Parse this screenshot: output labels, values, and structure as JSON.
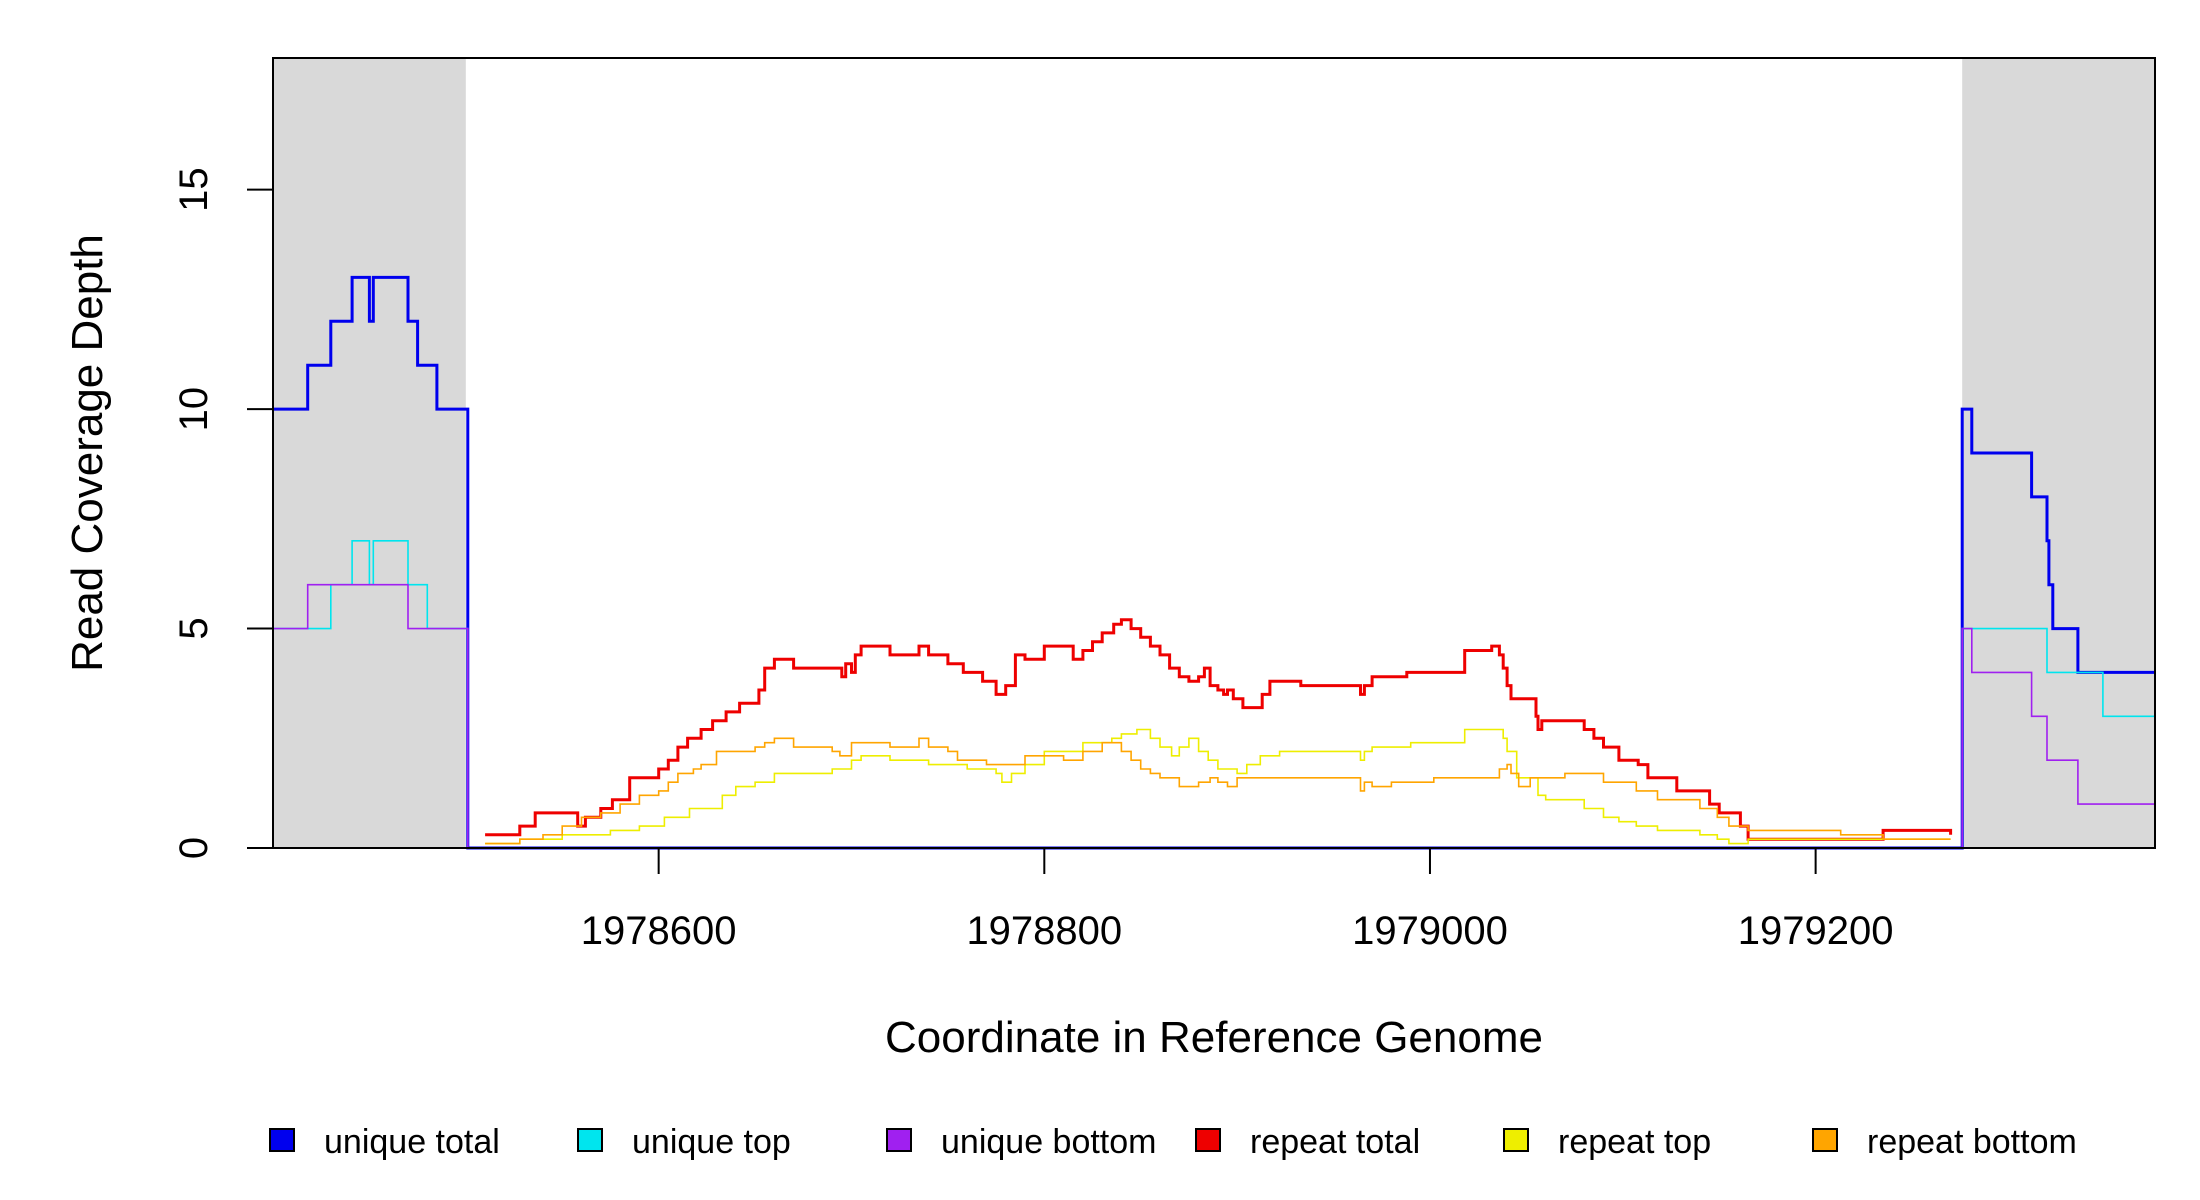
{
  "chart_data": {
    "type": "line",
    "step": true,
    "xlabel": "Coordinate in Reference Genome",
    "ylabel": "Read Coverage Depth",
    "xlim": [
      1978400,
      1979376
    ],
    "ylim": [
      0,
      18
    ],
    "x_ticks": [
      1978600,
      1978800,
      1979000,
      1979200
    ],
    "y_ticks": [
      0,
      5,
      10,
      15
    ],
    "shaded_regions": [
      {
        "from": 1978400,
        "to": 1978500,
        "color": "#d9d9d9"
      },
      {
        "from": 1979276,
        "to": 1979376,
        "color": "#d9d9d9"
      }
    ],
    "legend_position": "bottom",
    "series": [
      {
        "name": "unique total",
        "color": "#0000ee",
        "width": 3,
        "x": [
          1978400,
          1978410,
          1978418,
          1978430,
          1978440,
          1978441,
          1978445,
          1978450,
          1978452,
          1978459,
          1978466,
          1978470,
          1978475,
          1978480,
          1978485,
          1978496,
          1978501,
          1978510,
          1979270,
          1979276,
          1979281,
          1979300,
          1979312,
          1979320,
          1979321,
          1979323,
          1979336,
          1979349,
          1979376
        ],
        "y": [
          10,
          10,
          11,
          12,
          12,
          13,
          13,
          12,
          13,
          13,
          13,
          12,
          11,
          11,
          10,
          10,
          0,
          0,
          0,
          10,
          9,
          9,
          8,
          7,
          6,
          5,
          4,
          4,
          4
        ]
      },
      {
        "name": "unique top",
        "color": "#00e5ee",
        "width": 1.6,
        "x": [
          1978400,
          1978410,
          1978418,
          1978430,
          1978440,
          1978441,
          1978445,
          1978450,
          1978452,
          1978459,
          1978466,
          1978470,
          1978480,
          1978485,
          1978496,
          1978501,
          1978510,
          1979270,
          1979276,
          1979281,
          1979300,
          1979312,
          1979320,
          1979336,
          1979349,
          1979376
        ],
        "y": [
          5,
          5,
          5,
          6,
          6,
          7,
          7,
          6,
          7,
          7,
          7,
          6,
          5,
          5,
          5,
          0,
          0,
          0,
          5,
          5,
          5,
          5,
          4,
          4,
          3,
          3
        ]
      },
      {
        "name": "unique bottom",
        "color": "#a020f0",
        "width": 1.6,
        "x": [
          1978400,
          1978410,
          1978418,
          1978430,
          1978440,
          1978441,
          1978445,
          1978450,
          1978452,
          1978459,
          1978466,
          1978470,
          1978480,
          1978485,
          1978496,
          1978501,
          1978510,
          1979270,
          1979276,
          1979281,
          1979300,
          1979312,
          1979320,
          1979336,
          1979349,
          1979376
        ],
        "y": [
          5,
          5,
          6,
          6,
          6,
          6,
          6,
          6,
          6,
          6,
          6,
          5,
          5,
          5,
          5,
          0,
          0,
          0,
          5,
          4,
          4,
          3,
          2,
          1,
          1,
          1
        ]
      },
      {
        "name": "repeat total",
        "color": "#ee0000",
        "width": 3,
        "x": [
          1978510,
          1978528,
          1978536,
          1978547,
          1978558,
          1978562,
          1978570,
          1978576,
          1978585,
          1978600,
          1978605,
          1978610,
          1978615,
          1978622,
          1978628,
          1978635,
          1978642,
          1978652,
          1978655,
          1978660,
          1978670,
          1978695,
          1978697,
          1978700,
          1978702,
          1978705,
          1978720,
          1978735,
          1978740,
          1978750,
          1978758,
          1978768,
          1978775,
          1978780,
          1978785,
          1978790,
          1978800,
          1978815,
          1978820,
          1978825,
          1978830,
          1978836,
          1978840,
          1978845,
          1978850,
          1978855,
          1978860,
          1978865,
          1978870,
          1978875,
          1978880,
          1978883,
          1978886,
          1978890,
          1978893,
          1978895,
          1978898,
          1978903,
          1978913,
          1978917,
          1978933,
          1978964,
          1978966,
          1978970,
          1978988,
          1979018,
          1979032,
          1979036,
          1979038,
          1979040,
          1979042,
          1979045,
          1979055,
          1979056,
          1979058,
          1979080,
          1979085,
          1979090,
          1979098,
          1979108,
          1979113,
          1979128,
          1979145,
          1979150,
          1979161,
          1979165,
          1979235,
          1979270
        ],
        "y": [
          0.3,
          0.5,
          0.8,
          0.8,
          0.5,
          0.7,
          0.9,
          1.1,
          1.6,
          1.8,
          2.0,
          2.3,
          2.5,
          2.7,
          2.9,
          3.1,
          3.3,
          3.6,
          4.1,
          4.3,
          4.1,
          3.9,
          4.2,
          4.0,
          4.4,
          4.6,
          4.4,
          4.6,
          4.4,
          4.2,
          4.0,
          3.8,
          3.5,
          3.7,
          4.4,
          4.3,
          4.6,
          4.3,
          4.5,
          4.7,
          4.9,
          5.1,
          5.2,
          5.0,
          4.8,
          4.6,
          4.4,
          4.1,
          3.9,
          3.8,
          3.9,
          4.1,
          3.7,
          3.6,
          3.5,
          3.6,
          3.4,
          3.2,
          3.5,
          3.8,
          3.7,
          3.5,
          3.7,
          3.9,
          4.0,
          4.5,
          4.6,
          4.4,
          4.1,
          3.7,
          3.4,
          3.4,
          3.0,
          2.7,
          2.9,
          2.7,
          2.5,
          2.3,
          2.0,
          1.9,
          1.6,
          1.3,
          1.0,
          0.8,
          0.5,
          0.2,
          0.4,
          0.3
        ]
      },
      {
        "name": "repeat top",
        "color": "#eeee00",
        "width": 1.6,
        "x": [
          1978510,
          1978528,
          1978550,
          1978563,
          1978575,
          1978590,
          1978603,
          1978616,
          1978633,
          1978640,
          1978650,
          1978660,
          1978690,
          1978700,
          1978705,
          1978720,
          1978740,
          1978760,
          1978775,
          1978778,
          1978783,
          1978790,
          1978800,
          1978820,
          1978835,
          1978840,
          1978848,
          1978855,
          1978860,
          1978866,
          1978870,
          1978875,
          1978880,
          1978885,
          1978890,
          1978900,
          1978905,
          1978912,
          1978922,
          1978964,
          1978966,
          1978970,
          1978990,
          1979018,
          1979038,
          1979040,
          1979045,
          1979056,
          1979060,
          1979080,
          1979090,
          1979098,
          1979107,
          1979118,
          1979140,
          1979149,
          1979155,
          1979165,
          1979235,
          1979270
        ],
        "y": [
          0.1,
          0.2,
          0.3,
          0.3,
          0.4,
          0.5,
          0.7,
          0.9,
          1.2,
          1.4,
          1.5,
          1.7,
          1.8,
          2.0,
          2.1,
          2.0,
          1.9,
          1.8,
          1.7,
          1.5,
          1.7,
          1.9,
          2.2,
          2.4,
          2.5,
          2.6,
          2.7,
          2.5,
          2.3,
          2.1,
          2.3,
          2.5,
          2.2,
          2.0,
          1.8,
          1.7,
          1.9,
          2.1,
          2.2,
          2.0,
          2.2,
          2.3,
          2.4,
          2.7,
          2.5,
          2.2,
          1.6,
          1.2,
          1.1,
          0.9,
          0.7,
          0.6,
          0.5,
          0.4,
          0.3,
          0.2,
          0.1,
          0.2,
          0.2,
          0.2
        ]
      },
      {
        "name": "repeat bottom",
        "color": "#ffa500",
        "width": 1.6,
        "x": [
          1978510,
          1978528,
          1978540,
          1978550,
          1978560,
          1978570,
          1978580,
          1978590,
          1978600,
          1978605,
          1978610,
          1978618,
          1978622,
          1978630,
          1978650,
          1978655,
          1978660,
          1978670,
          1978690,
          1978694,
          1978700,
          1978720,
          1978735,
          1978740,
          1978750,
          1978755,
          1978770,
          1978790,
          1978810,
          1978820,
          1978830,
          1978840,
          1978845,
          1978850,
          1978855,
          1978860,
          1978870,
          1978880,
          1978886,
          1978890,
          1978895,
          1978900,
          1978964,
          1978966,
          1978970,
          1978980,
          1979002,
          1979036,
          1979040,
          1979042,
          1979046,
          1979052,
          1979070,
          1979090,
          1979107,
          1979118,
          1979140,
          1979149,
          1979155,
          1979165,
          1979213,
          1979235,
          1979270
        ],
        "y": [
          0.1,
          0.2,
          0.3,
          0.5,
          0.7,
          0.8,
          1.0,
          1.2,
          1.3,
          1.5,
          1.7,
          1.8,
          1.9,
          2.2,
          2.3,
          2.4,
          2.5,
          2.3,
          2.2,
          2.1,
          2.4,
          2.3,
          2.5,
          2.3,
          2.2,
          2.0,
          1.9,
          2.1,
          2.0,
          2.2,
          2.4,
          2.2,
          2.0,
          1.8,
          1.7,
          1.6,
          1.4,
          1.5,
          1.6,
          1.5,
          1.4,
          1.6,
          1.3,
          1.5,
          1.4,
          1.5,
          1.6,
          1.8,
          1.9,
          1.7,
          1.4,
          1.6,
          1.7,
          1.5,
          1.3,
          1.1,
          0.9,
          0.7,
          0.5,
          0.4,
          0.3,
          0.2,
          0.2
        ]
      }
    ]
  }
}
